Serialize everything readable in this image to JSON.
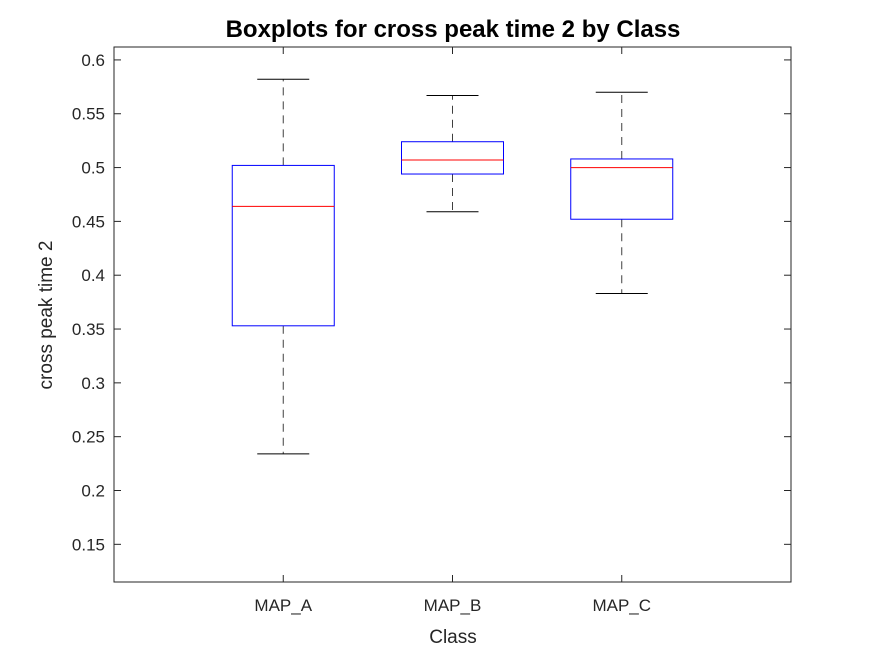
{
  "chart_data": {
    "type": "boxplot",
    "title": "Boxplots for cross peak time 2 by Class",
    "xlabel": "Class",
    "ylabel": "cross peak time 2",
    "categories": [
      "MAP_A",
      "MAP_B",
      "MAP_C"
    ],
    "ylim": [
      0.115,
      0.612
    ],
    "yticks": [
      0.15,
      0.2,
      0.25,
      0.3,
      0.35,
      0.4,
      0.45,
      0.5,
      0.55,
      0.6
    ],
    "ytick_labels": [
      "0.15",
      "0.2",
      "0.25",
      "0.3",
      "0.35",
      "0.4",
      "0.45",
      "0.5",
      "0.55",
      "0.6"
    ],
    "boxes": [
      {
        "category": "MAP_A",
        "whisker_low": 0.234,
        "q1": 0.353,
        "median": 0.464,
        "q3": 0.502,
        "whisker_high": 0.582
      },
      {
        "category": "MAP_B",
        "whisker_low": 0.459,
        "q1": 0.494,
        "median": 0.507,
        "q3": 0.524,
        "whisker_high": 0.567
      },
      {
        "category": "MAP_C",
        "whisker_low": 0.383,
        "q1": 0.452,
        "median": 0.5,
        "q3": 0.508,
        "whisker_high": 0.57
      }
    ],
    "grid": false,
    "colors": {
      "box": "#0000ff",
      "median": "#ff0000",
      "whisker": "#000000",
      "axes": "#262626"
    }
  }
}
